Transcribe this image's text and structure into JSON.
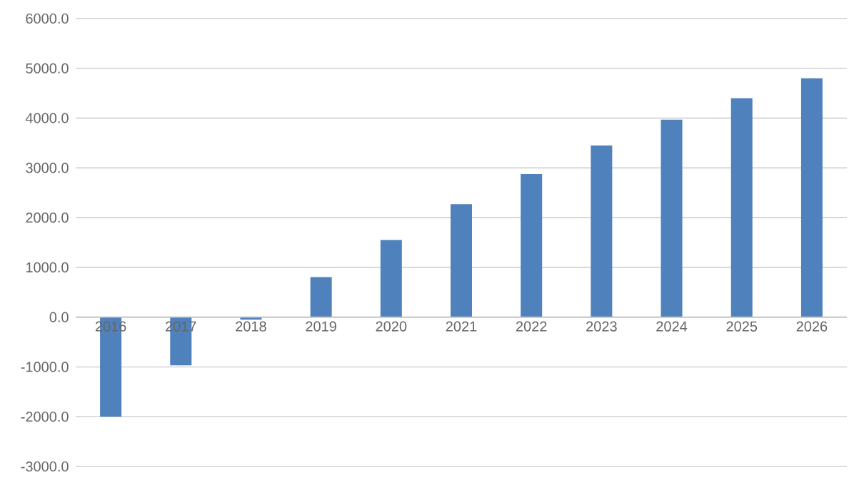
{
  "chart_data": {
    "type": "bar",
    "categories": [
      "2016",
      "2017",
      "2018",
      "2019",
      "2020",
      "2021",
      "2022",
      "2023",
      "2024",
      "2025",
      "2026"
    ],
    "values": [
      -2000,
      -970,
      -50,
      805,
      1550,
      2270,
      2875,
      3450,
      3970,
      4400,
      4800
    ],
    "color": "#4f81bd",
    "ylim": [
      -3000,
      6000
    ],
    "yticks": [
      {
        "value": -3000,
        "label": "-3000.0"
      },
      {
        "value": -2000,
        "label": "-2000.0"
      },
      {
        "value": -1000,
        "label": "-1000.0"
      },
      {
        "value": 0,
        "label": "0.0"
      },
      {
        "value": 1000,
        "label": "1000.0"
      },
      {
        "value": 2000,
        "label": "2000.0"
      },
      {
        "value": 3000,
        "label": "3000.0"
      },
      {
        "value": 4000,
        "label": "4000.0"
      },
      {
        "value": 5000,
        "label": "5000.0"
      },
      {
        "value": 6000,
        "label": "6000.0"
      }
    ],
    "grid": "y"
  }
}
